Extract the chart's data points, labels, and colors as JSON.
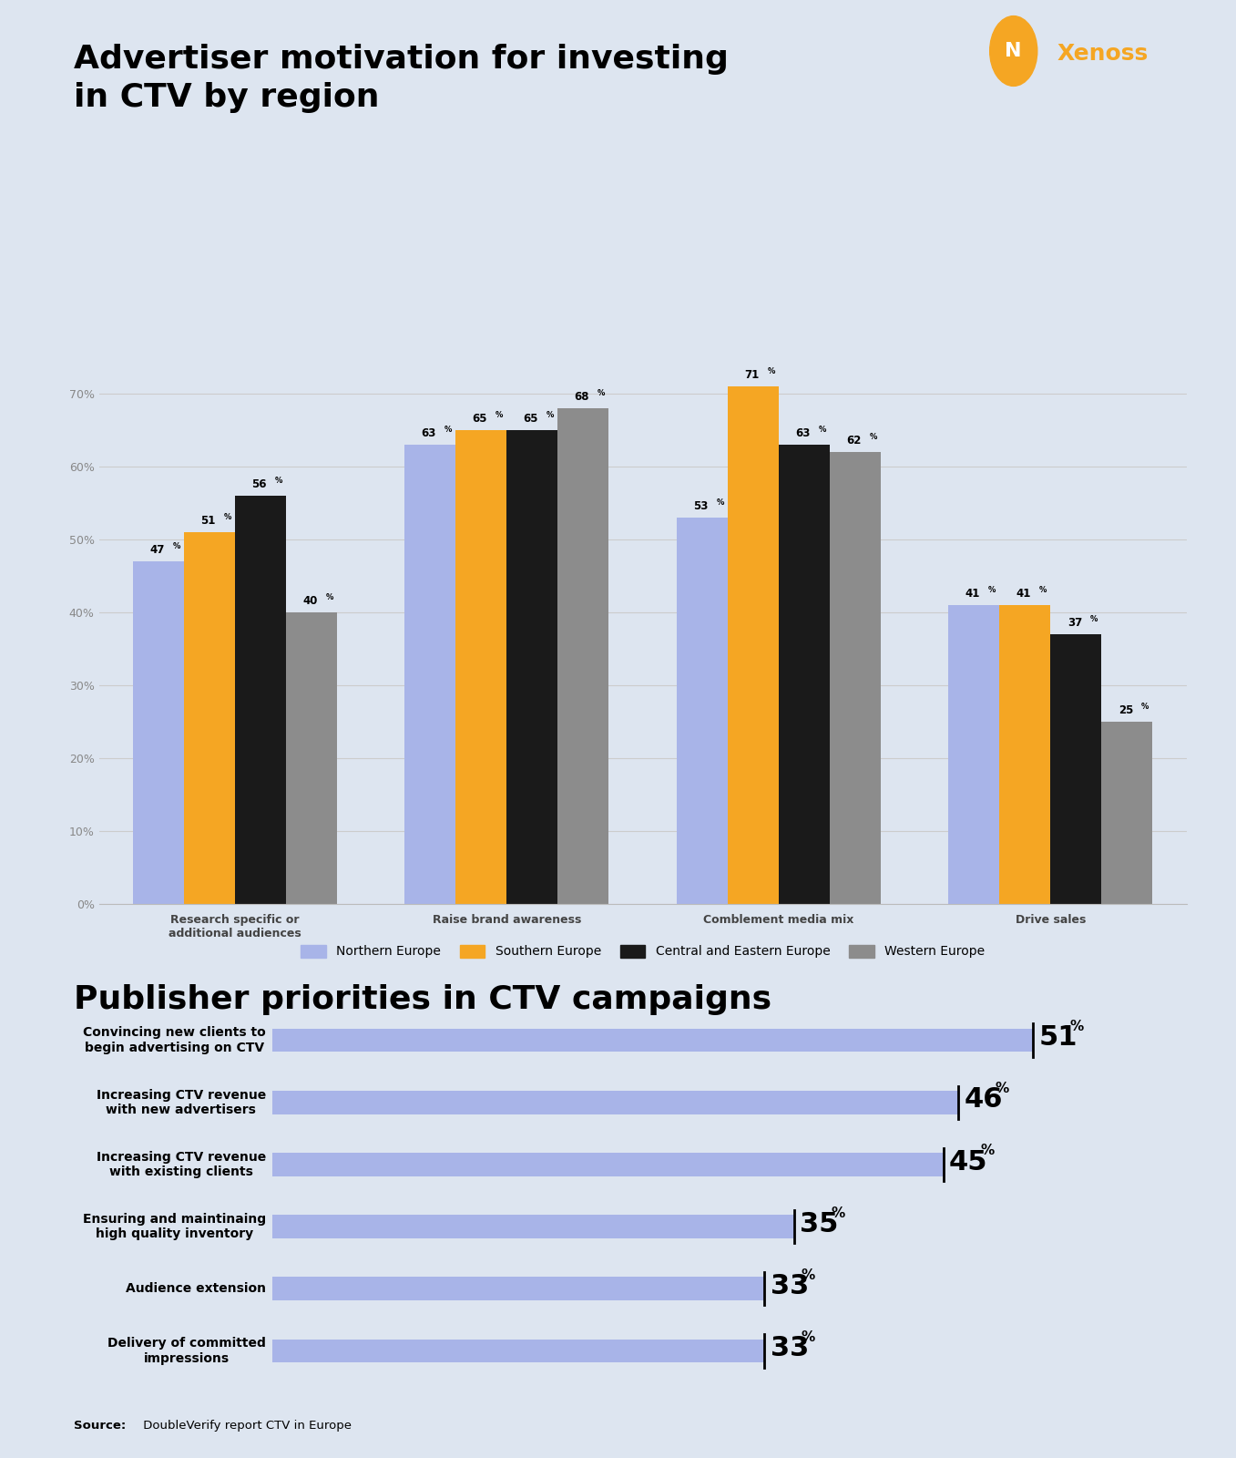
{
  "background_color": "#dde5f0",
  "title1": "Advertiser motivation for investing\nin CTV by region",
  "title2": "Publisher priorities in CTV campaigns",
  "source_bold": "Source:",
  "source_rest": " DoubleVerify report CTV in Europe",
  "bar_categories": [
    "Research specific or\nadditional audiences",
    "Raise brand awareness",
    "Comblement media mix",
    "Drive sales"
  ],
  "bar_series": [
    {
      "label": "Northern Europe",
      "color": "#a8b4e8",
      "values": [
        47,
        63,
        53,
        41
      ]
    },
    {
      "label": "Southern Europe",
      "color": "#f5a623",
      "values": [
        51,
        65,
        71,
        41
      ]
    },
    {
      "label": "Central and Eastern Europe",
      "color": "#1a1a1a",
      "values": [
        56,
        65,
        63,
        37
      ]
    },
    {
      "label": "Western Europe",
      "color": "#8c8c8c",
      "values": [
        40,
        68,
        62,
        25
      ]
    }
  ],
  "bar_ylim": [
    0,
    76
  ],
  "bar_yticks": [
    0,
    10,
    20,
    30,
    40,
    50,
    60,
    70
  ],
  "bar_ytick_labels": [
    "0%",
    "10%",
    "20%",
    "30%",
    "40%",
    "50%",
    "60%",
    "70%"
  ],
  "horiz_categories": [
    "Convincing new clients to\nbegin advertising on CTV",
    "Increasing CTV revenue\nwith new advertisers",
    "Increasing CTV revenue\nwith existing clients",
    "Ensuring and maintinaing\nhigh quality inventory",
    "Audience extension",
    "Delivery of committed\nimpressions"
  ],
  "horiz_values": [
    51,
    46,
    45,
    35,
    33,
    33
  ],
  "horiz_color": "#a8b4e8",
  "horiz_xlim": [
    0,
    58
  ]
}
